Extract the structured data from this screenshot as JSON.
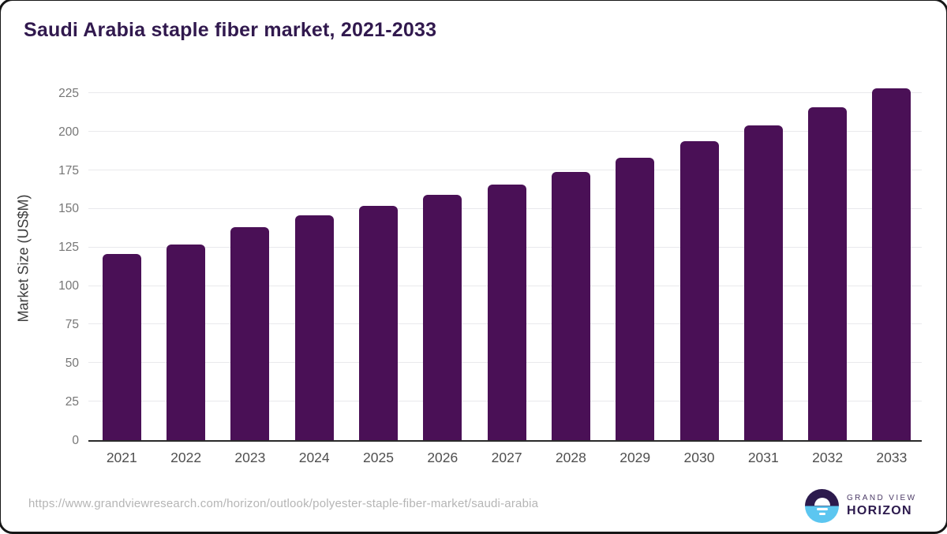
{
  "title": "Saudi Arabia staple fiber market, 2021-2033",
  "chart_data": {
    "type": "bar",
    "title": "Saudi Arabia staple fiber market, 2021-2033",
    "categories": [
      "2021",
      "2022",
      "2023",
      "2024",
      "2025",
      "2026",
      "2027",
      "2028",
      "2029",
      "2030",
      "2031",
      "2032",
      "2033"
    ],
    "values": [
      121,
      127,
      138,
      146,
      152,
      159,
      166,
      174,
      183,
      194,
      204,
      216,
      228
    ],
    "xlabel": "",
    "ylabel": "Market Size (US$M)",
    "ylim": [
      0,
      225
    ],
    "yticks": [
      0,
      25,
      50,
      75,
      100,
      125,
      150,
      175,
      200,
      225
    ],
    "grid": true,
    "legend": false,
    "bar_color": "#4a1056"
  },
  "footer": {
    "source_url": "https://www.grandviewresearch.com/horizon/outlook/polyester-staple-fiber-market/saudi-arabia",
    "logo_line1": "GRAND VIEW",
    "logo_line2": "HORIZON"
  },
  "colors": {
    "title": "#31194e",
    "bar": "#4a1056",
    "gridline": "#e9e9ec",
    "axis_line": "#2a2a2a",
    "y_tick_text": "#767676",
    "x_tick_text": "#4f4f4f",
    "source_text": "#b5b5b5",
    "logo_navy": "#2c1a4d",
    "logo_blue": "#5cc6f0"
  }
}
